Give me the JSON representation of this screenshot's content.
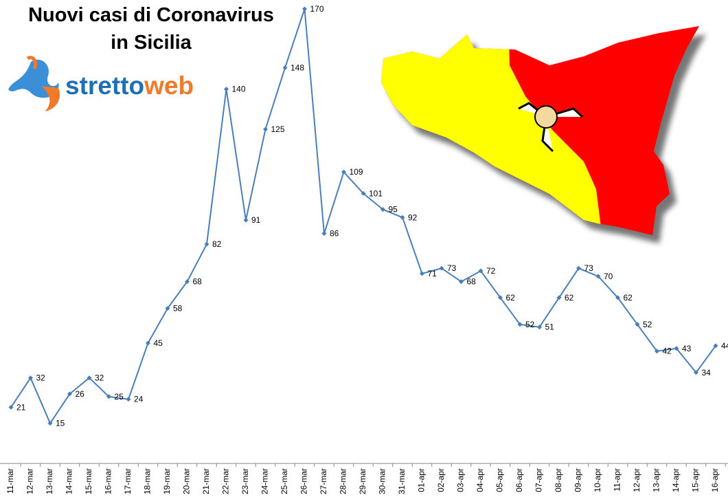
{
  "chart_data": {
    "type": "line",
    "title": "Nuovi casi di Coronavirus in Sicilia",
    "categories": [
      "11-mar",
      "12-mar",
      "13-mar",
      "14-mar",
      "15-mar",
      "16-mar",
      "17-mar",
      "18-mar",
      "19-mar",
      "20-mar",
      "21-mar",
      "22-mar",
      "23-mar",
      "24-mar",
      "25-mar",
      "26-mar",
      "27-mar",
      "28-mar",
      "29-mar",
      "30-mar",
      "31-mar",
      "01-apr",
      "02-apr",
      "03-apr",
      "04-apr",
      "05-apr",
      "06-apr",
      "07-apr",
      "08-apr",
      "09-apr",
      "10-apr",
      "11-apr",
      "12-apr",
      "13-apr",
      "14-apr",
      "15-apr",
      "16-apr"
    ],
    "values": [
      21,
      32,
      15,
      26,
      32,
      25,
      24,
      45,
      58,
      68,
      82,
      140,
      91,
      125,
      148,
      170,
      86,
      109,
      101,
      95,
      92,
      71,
      73,
      68,
      72,
      62,
      52,
      51,
      62,
      73,
      70,
      62,
      52,
      42,
      43,
      34,
      44
    ],
    "color": "#4a7ebb",
    "ylim": [
      0,
      170
    ]
  },
  "logo": [
    "stretto",
    "web"
  ]
}
